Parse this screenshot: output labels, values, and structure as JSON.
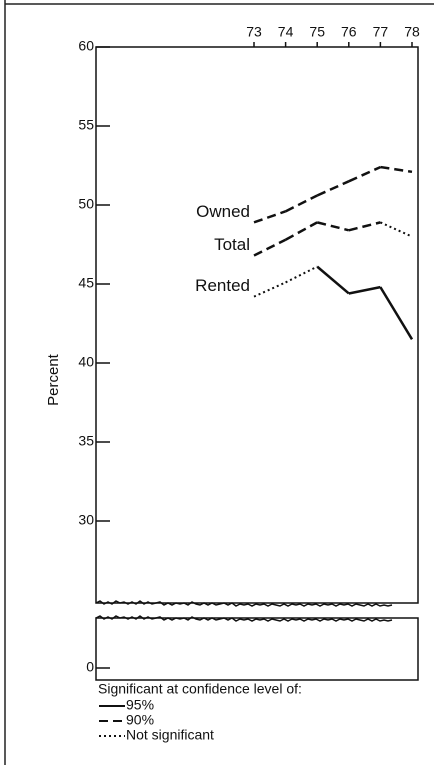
{
  "chart_data": {
    "type": "line",
    "ylabel": "Percent",
    "x": [
      73,
      74,
      75,
      76,
      77,
      78
    ],
    "xlim": [
      73,
      78
    ],
    "xticks": [
      73,
      74,
      75,
      76,
      77,
      78
    ],
    "ylim": [
      0,
      60
    ],
    "axis_break": [
      4,
      25
    ],
    "yticks": [
      0,
      30,
      35,
      40,
      45,
      50,
      55,
      60
    ],
    "series": [
      {
        "name": "Owned",
        "color": "#111111",
        "values": [
          48.9,
          49.6,
          50.6,
          51.5,
          52.4,
          52.1
        ],
        "segment_styles": [
          "dashed",
          "dashed",
          "dashed",
          "dashed",
          "dashed"
        ]
      },
      {
        "name": "Total",
        "color": "#111111",
        "values": [
          46.8,
          47.8,
          48.9,
          48.4,
          48.9,
          48.0
        ],
        "segment_styles": [
          "dashed",
          "dashed",
          "dashed",
          "dashed",
          "dotted"
        ]
      },
      {
        "name": "Rented",
        "color": "#111111",
        "values": [
          44.2,
          45.1,
          46.1,
          44.4,
          44.8,
          41.5
        ],
        "segment_styles": [
          "dotted",
          "dotted",
          "solid",
          "solid",
          "solid"
        ]
      }
    ],
    "legend": {
      "title": "Significant at confidence level of:",
      "entries": [
        {
          "style": "solid",
          "label": "95%"
        },
        {
          "style": "dashed",
          "label": "90%"
        },
        {
          "style": "dotted",
          "label": "Not significant"
        }
      ]
    }
  }
}
